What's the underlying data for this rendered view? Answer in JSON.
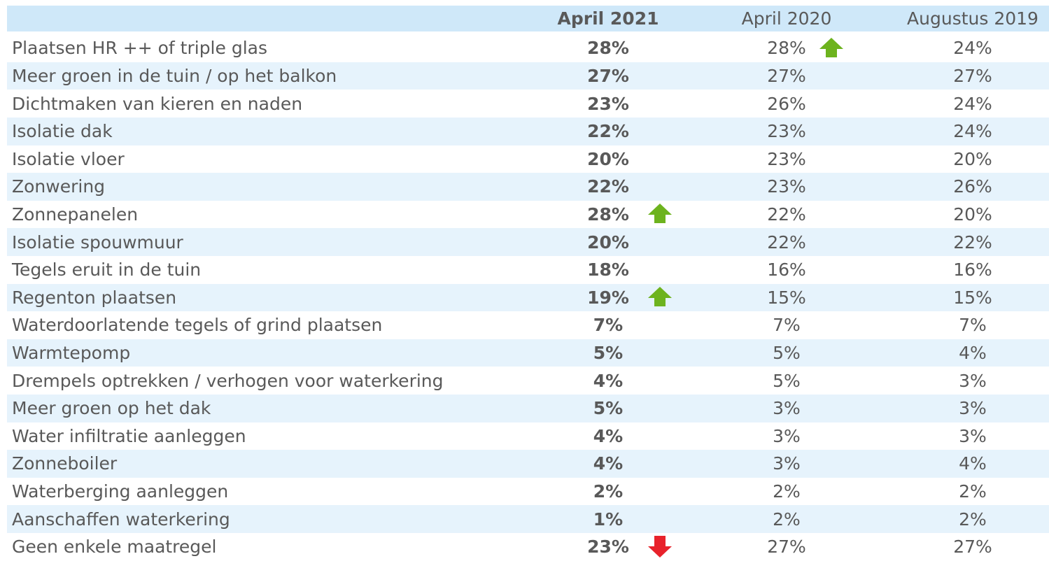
{
  "table": {
    "columns": [
      "April 2021",
      "April 2020",
      "Augustus 2019"
    ],
    "rows": [
      [
        "Plaatsen HR ++ of triple glas",
        "28%",
        "28%",
        "24%"
      ],
      [
        "Meer groen in de tuin / op het balkon",
        "27%",
        "27%",
        "27%"
      ],
      [
        "Dichtmaken van kieren en naden",
        "23%",
        "26%",
        "24%"
      ],
      [
        "Isolatie dak",
        "22%",
        "23%",
        "24%"
      ],
      [
        "Isolatie vloer",
        "20%",
        "23%",
        "20%"
      ],
      [
        "Zonwering",
        "22%",
        "23%",
        "26%"
      ],
      [
        "Zonnepanelen",
        "28%",
        "22%",
        "20%"
      ],
      [
        "Isolatie spouwmuur",
        "20%",
        "22%",
        "22%"
      ],
      [
        "Tegels eruit in de tuin",
        "18%",
        "16%",
        "16%"
      ],
      [
        "Regenton plaatsen",
        "19%",
        "15%",
        "15%"
      ],
      [
        "Waterdoorlatende tegels of grind plaatsen",
        "7%",
        "7%",
        "7%"
      ],
      [
        "Warmtepomp",
        "5%",
        "5%",
        "4%"
      ],
      [
        "Drempels optrekken / verhogen voor waterkering",
        "4%",
        "5%",
        "3%"
      ],
      [
        "Meer groen op het dak",
        "5%",
        "3%",
        "3%"
      ],
      [
        "Water infiltratie aanleggen",
        "4%",
        "3%",
        "3%"
      ],
      [
        "Zonneboiler",
        "4%",
        "3%",
        "4%"
      ],
      [
        "Waterberging aanleggen",
        "2%",
        "2%",
        "2%"
      ],
      [
        "Aanschaffen waterkering",
        "1%",
        "2%",
        "2%"
      ],
      [
        "Geen enkele maatregel",
        "23%",
        "27%",
        "27%"
      ]
    ]
  }
}
